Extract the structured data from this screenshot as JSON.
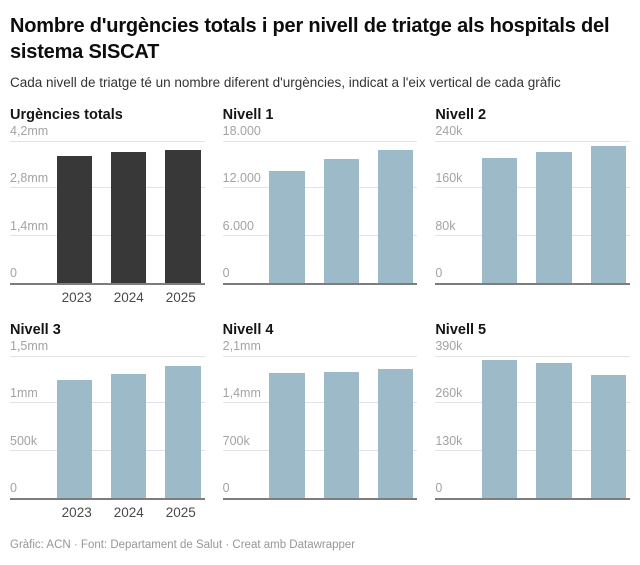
{
  "page": {
    "title": "Nombre d'urgències totals i per nivell de triatge als hospitals del sistema SISCAT",
    "subtitle": "Cada nivell de triatge té un nombre diferent d'urgències, indicat a l'eix vertical de cada gràfic",
    "footer": "Gràfic: ACN · Font: Departament de Salut · Creat amb Datawrapper"
  },
  "colors": {
    "dark_bar": "#383838",
    "light_bar": "#9cbac7",
    "gridline": "#e3e3e3",
    "baseline": "#7d7d7d",
    "tick_label": "#a3a3a3",
    "year_label": "#4a4a4a"
  },
  "chart_data": [
    {
      "type": "bar",
      "title": "Urgències totals",
      "categories": [
        "2023",
        "2024",
        "2025"
      ],
      "values": [
        3750000,
        3870000,
        3940000
      ],
      "ylim": [
        0,
        4200000
      ],
      "ytick_labels": [
        "0",
        "1,4mm",
        "2,8mm",
        "4,2mm"
      ],
      "bar_color": "#383838",
      "show_x_labels": true,
      "grid": true,
      "legend": "none"
    },
    {
      "type": "bar",
      "title": "Nivell 1",
      "categories": [
        "2023",
        "2024",
        "2025"
      ],
      "values": [
        14200,
        15700,
        16900
      ],
      "ylim": [
        0,
        18000
      ],
      "ytick_labels": [
        "0",
        "6.000",
        "12.000",
        "18.000"
      ],
      "bar_color": "#9cbac7",
      "show_x_labels": false,
      "grid": true,
      "legend": "none"
    },
    {
      "type": "bar",
      "title": "Nivell 2",
      "categories": [
        "2023",
        "2024",
        "2025"
      ],
      "values": [
        211000,
        222000,
        231000
      ],
      "ylim": [
        0,
        240000
      ],
      "ytick_labels": [
        "0",
        "80k",
        "160k",
        "240k"
      ],
      "bar_color": "#9cbac7",
      "show_x_labels": false,
      "grid": true,
      "legend": "none"
    },
    {
      "type": "bar",
      "title": "Nivell 3",
      "categories": [
        "2023",
        "2024",
        "2025"
      ],
      "values": [
        1250000,
        1310000,
        1390000
      ],
      "ylim": [
        0,
        1500000
      ],
      "ytick_labels": [
        "0",
        "500k",
        "1mm",
        "1,5mm"
      ],
      "bar_color": "#9cbac7",
      "show_x_labels": true,
      "grid": true,
      "legend": "none"
    },
    {
      "type": "bar",
      "title": "Nivell 4",
      "categories": [
        "2023",
        "2024",
        "2025"
      ],
      "values": [
        1850000,
        1870000,
        1910000
      ],
      "ylim": [
        0,
        2100000
      ],
      "ytick_labels": [
        "0",
        "700k",
        "1,4mm",
        "2,1mm"
      ],
      "bar_color": "#9cbac7",
      "show_x_labels": false,
      "grid": true,
      "legend": "none"
    },
    {
      "type": "bar",
      "title": "Nivell 5",
      "categories": [
        "2023",
        "2024",
        "2025"
      ],
      "values": [
        380000,
        372000,
        339000
      ],
      "ylim": [
        0,
        390000
      ],
      "ytick_labels": [
        "0",
        "130k",
        "260k",
        "390k"
      ],
      "bar_color": "#9cbac7",
      "show_x_labels": false,
      "grid": true,
      "legend": "none"
    }
  ]
}
